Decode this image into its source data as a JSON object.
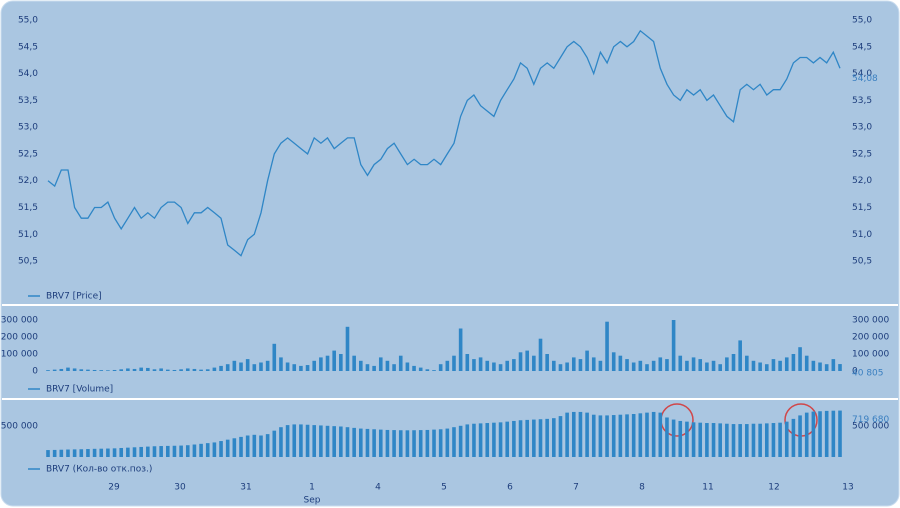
{
  "chart_data": [
    {
      "type": "line",
      "ylim": [
        50.0,
        55.3
      ],
      "yticks": [
        {
          "value": 50.5,
          "label": "50,5"
        },
        {
          "value": 51.0,
          "label": "51,0"
        },
        {
          "value": 51.5,
          "label": "51,5"
        },
        {
          "value": 52.0,
          "label": "52,0"
        },
        {
          "value": 52.5,
          "label": "52,5"
        },
        {
          "value": 53.0,
          "label": "53,0"
        },
        {
          "value": 53.5,
          "label": "53,5"
        },
        {
          "value": 54.0,
          "label": "54,0"
        },
        {
          "value": 54.5,
          "label": "54,5"
        },
        {
          "value": 55.0,
          "label": "55,0"
        }
      ],
      "last": {
        "value": 54.08,
        "label": "54,08"
      },
      "series": [
        {
          "name": "BRV7 [Price]",
          "color": "#2f86c6",
          "values": [
            52.0,
            51.9,
            52.2,
            52.2,
            51.5,
            51.3,
            51.3,
            51.5,
            51.5,
            51.6,
            51.3,
            51.1,
            51.3,
            51.5,
            51.3,
            51.4,
            51.3,
            51.5,
            51.6,
            51.6,
            51.5,
            51.2,
            51.4,
            51.4,
            51.5,
            51.4,
            51.3,
            50.8,
            50.7,
            50.6,
            50.9,
            51.0,
            51.4,
            52.0,
            52.5,
            52.7,
            52.8,
            52.7,
            52.6,
            52.5,
            52.8,
            52.7,
            52.8,
            52.6,
            52.7,
            52.8,
            52.8,
            52.3,
            52.1,
            52.3,
            52.4,
            52.6,
            52.7,
            52.5,
            52.3,
            52.4,
            52.3,
            52.3,
            52.4,
            52.3,
            52.5,
            52.7,
            53.2,
            53.5,
            53.6,
            53.4,
            53.3,
            53.2,
            53.5,
            53.7,
            53.9,
            54.2,
            54.1,
            53.8,
            54.1,
            54.2,
            54.1,
            54.3,
            54.5,
            54.6,
            54.5,
            54.3,
            54.0,
            54.4,
            54.2,
            54.5,
            54.6,
            54.5,
            54.6,
            54.8,
            54.7,
            54.6,
            54.1,
            53.8,
            53.6,
            53.5,
            53.7,
            53.6,
            53.7,
            53.5,
            53.6,
            53.4,
            53.2,
            53.1,
            53.7,
            53.8,
            53.7,
            53.8,
            53.6,
            53.7,
            53.7,
            53.9,
            54.2,
            54.3,
            54.3,
            54.2,
            54.3,
            54.2,
            54.4,
            54.1
          ]
        }
      ]
    },
    {
      "type": "bar",
      "ylim": [
        0,
        350000
      ],
      "yticks": [
        {
          "value": 0,
          "label": "0"
        },
        {
          "value": 100000,
          "label": "100 000"
        },
        {
          "value": 200000,
          "label": "200 000"
        },
        {
          "value": 300000,
          "label": "300 000"
        }
      ],
      "last": {
        "value": 40805,
        "label": "40 805"
      },
      "series": [
        {
          "name": "BRV7 [Volume]",
          "color": "#2f86c6",
          "values": [
            5000,
            8000,
            12000,
            20000,
            15000,
            10000,
            8000,
            6000,
            5000,
            4000,
            6000,
            10000,
            15000,
            12000,
            20000,
            18000,
            10000,
            15000,
            8000,
            6000,
            10000,
            15000,
            12000,
            8000,
            10000,
            20000,
            30000,
            40000,
            60000,
            50000,
            70000,
            40000,
            50000,
            60000,
            160000,
            80000,
            50000,
            40000,
            30000,
            35000,
            60000,
            80000,
            90000,
            120000,
            100000,
            260000,
            90000,
            60000,
            40000,
            30000,
            80000,
            60000,
            40000,
            90000,
            50000,
            30000,
            20000,
            10000,
            5000,
            40000,
            60000,
            90000,
            250000,
            100000,
            70000,
            80000,
            60000,
            50000,
            40000,
            60000,
            70000,
            110000,
            120000,
            90000,
            190000,
            100000,
            60000,
            40000,
            50000,
            80000,
            70000,
            120000,
            80000,
            60000,
            290000,
            110000,
            90000,
            70000,
            50000,
            60000,
            40000,
            60000,
            80000,
            70000,
            300000,
            90000,
            60000,
            80000,
            70000,
            50000,
            60000,
            40000,
            80000,
            100000,
            180000,
            90000,
            60000,
            50000,
            40000,
            70000,
            60000,
            80000,
            100000,
            140000,
            90000,
            60000,
            50000,
            40000,
            70000,
            40805
          ]
        }
      ]
    },
    {
      "type": "bar",
      "ylim": [
        50000,
        800000
      ],
      "yticks": [
        {
          "value": 500000,
          "label": "500 000"
        }
      ],
      "last": {
        "value": 719680,
        "label": "719 680"
      },
      "series": [
        {
          "name": "BRV7 (Кол-во отк.поз.)",
          "color": "#2f86c6",
          "values": [
            150000,
            152000,
            155000,
            158000,
            160000,
            162000,
            165000,
            168000,
            170000,
            172000,
            175000,
            180000,
            185000,
            190000,
            195000,
            200000,
            205000,
            208000,
            210000,
            212000,
            215000,
            220000,
            230000,
            240000,
            250000,
            260000,
            280000,
            300000,
            320000,
            340000,
            360000,
            370000,
            360000,
            380000,
            430000,
            480000,
            510000,
            520000,
            520000,
            515000,
            510000,
            505000,
            500000,
            495000,
            490000,
            480000,
            470000,
            460000,
            455000,
            450000,
            445000,
            440000,
            438000,
            436000,
            435000,
            436000,
            438000,
            440000,
            445000,
            450000,
            460000,
            480000,
            500000,
            520000,
            530000,
            535000,
            540000,
            545000,
            550000,
            560000,
            570000,
            580000,
            585000,
            590000,
            595000,
            600000,
            610000,
            640000,
            690000,
            700000,
            700000,
            690000,
            660000,
            650000,
            650000,
            655000,
            660000,
            665000,
            670000,
            680000,
            690000,
            700000,
            690000,
            620000,
            590000,
            570000,
            560000,
            550000,
            545000,
            540000,
            540000,
            535000,
            530000,
            525000,
            525000,
            525000,
            530000,
            530000,
            535000,
            540000,
            545000,
            560000,
            600000,
            650000,
            690000,
            705000,
            710000,
            715000,
            718000,
            719680
          ]
        }
      ]
    }
  ],
  "x_axis": {
    "labels": [
      "29",
      "30",
      "31",
      "1",
      "4",
      "5",
      "6",
      "7",
      "8",
      "11",
      "12",
      "13"
    ],
    "sublabel": "Sep"
  }
}
